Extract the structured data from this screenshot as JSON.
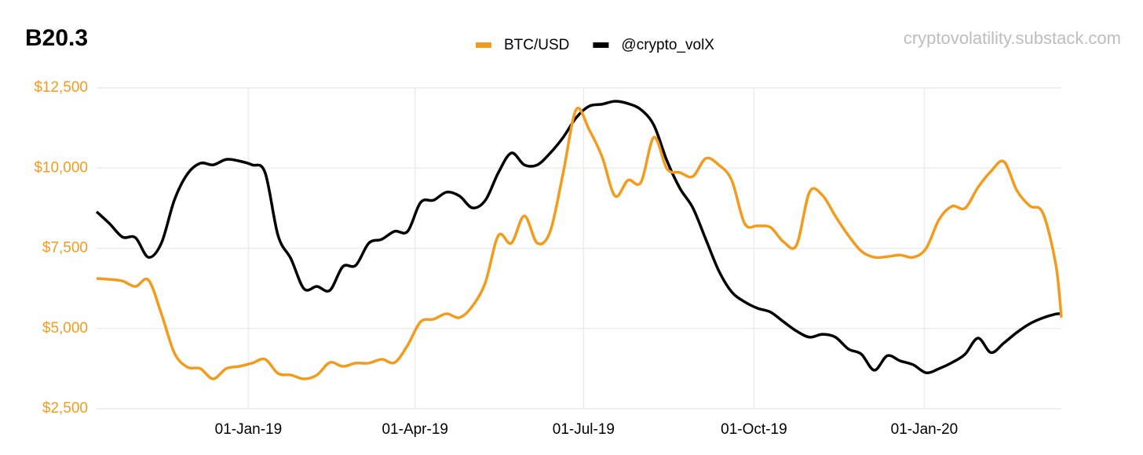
{
  "chart_data": {
    "type": "line",
    "title": "B20.3",
    "annotation": "cryptovolatility.substack.com",
    "legend": "top",
    "grid": true,
    "x": [
      "2018-10-11",
      "2018-10-18",
      "2018-10-25",
      "2018-11-01",
      "2018-11-08",
      "2018-11-15",
      "2018-11-22",
      "2018-11-29",
      "2018-12-06",
      "2018-12-13",
      "2018-12-20",
      "2018-12-27",
      "2019-01-03",
      "2019-01-10",
      "2019-01-17",
      "2019-01-24",
      "2019-01-31",
      "2019-02-07",
      "2019-02-14",
      "2019-02-21",
      "2019-02-28",
      "2019-03-07",
      "2019-03-14",
      "2019-03-21",
      "2019-03-28",
      "2019-04-04",
      "2019-04-11",
      "2019-04-18",
      "2019-04-25",
      "2019-05-02",
      "2019-05-09",
      "2019-05-16",
      "2019-05-23",
      "2019-05-30",
      "2019-06-06",
      "2019-06-13",
      "2019-06-20",
      "2019-06-27",
      "2019-07-04",
      "2019-07-11",
      "2019-07-18",
      "2019-07-25",
      "2019-08-01",
      "2019-08-08",
      "2019-08-15",
      "2019-08-22",
      "2019-08-29",
      "2019-09-05",
      "2019-09-12",
      "2019-09-19",
      "2019-09-26",
      "2019-10-03",
      "2019-10-10",
      "2019-10-17",
      "2019-10-24",
      "2019-10-31",
      "2019-11-07",
      "2019-11-14",
      "2019-11-21",
      "2019-11-28",
      "2019-12-05",
      "2019-12-12",
      "2019-12-19",
      "2019-12-26",
      "2020-01-02",
      "2020-01-09",
      "2020-01-16",
      "2020-01-23",
      "2020-01-30",
      "2020-02-06",
      "2020-02-13",
      "2020-02-20",
      "2020-02-27",
      "2020-03-05",
      "2020-03-12",
      "2020-03-15"
    ],
    "xlim": [
      "2018-10-11",
      "2020-03-15"
    ],
    "xticks": [
      {
        "value": "2019-01-01",
        "label": "01-Jan-19"
      },
      {
        "value": "2019-04-01",
        "label": "01-Apr-19"
      },
      {
        "value": "2019-07-01",
        "label": "01-Jul-19"
      },
      {
        "value": "2019-10-01",
        "label": "01-Oct-19"
      },
      {
        "value": "2020-01-01",
        "label": "01-Jan-20"
      }
    ],
    "ylim": [
      2500,
      12500
    ],
    "yticks": [
      {
        "value": 2500,
        "label": "$2,500"
      },
      {
        "value": 5000,
        "label": "$5,000"
      },
      {
        "value": 7500,
        "label": "$7,500"
      },
      {
        "value": 10000,
        "label": "$10,000"
      },
      {
        "value": 12500,
        "label": "$12,500"
      }
    ],
    "series": [
      {
        "name": "BTC/USD",
        "color": "#f39b1c",
        "values": [
          6560,
          6530,
          6480,
          6310,
          6510,
          5460,
          4240,
          3800,
          3750,
          3430,
          3750,
          3820,
          3920,
          4040,
          3600,
          3550,
          3430,
          3550,
          3940,
          3820,
          3920,
          3920,
          4040,
          3940,
          4480,
          5210,
          5290,
          5460,
          5340,
          5700,
          6440,
          7900,
          7660,
          8510,
          7660,
          8030,
          9860,
          11820,
          11200,
          10350,
          9130,
          9620,
          9560,
          10960,
          9980,
          9860,
          9740,
          10300,
          10100,
          9620,
          8270,
          8200,
          8150,
          7700,
          7600,
          9250,
          9150,
          8500,
          7900,
          7410,
          7220,
          7240,
          7290,
          7220,
          7500,
          8400,
          8810,
          8750,
          9400,
          9900,
          10200,
          9300,
          8820,
          8600,
          7000,
          5340
        ]
      },
      {
        "name": "@crypto_volX",
        "color": "#000000",
        "values": [
          8640,
          8270,
          7850,
          7830,
          7220,
          7660,
          9000,
          9810,
          10150,
          10100,
          10270,
          10220,
          10100,
          9860,
          7900,
          7170,
          6240,
          6310,
          6190,
          6930,
          6970,
          7660,
          7780,
          8030,
          8030,
          8930,
          9000,
          9250,
          9130,
          8760,
          9000,
          9860,
          10470,
          10100,
          10100,
          10470,
          10960,
          11570,
          11930,
          11990,
          12080,
          12010,
          11820,
          11330,
          10230,
          9370,
          8760,
          7780,
          6800,
          6140,
          5830,
          5630,
          5510,
          5210,
          4920,
          4730,
          4820,
          4730,
          4360,
          4200,
          3700,
          4150,
          3990,
          3870,
          3620,
          3750,
          3940,
          4200,
          4700,
          4250,
          4550,
          4880,
          5150,
          5330,
          5450,
          5460
        ]
      }
    ]
  }
}
